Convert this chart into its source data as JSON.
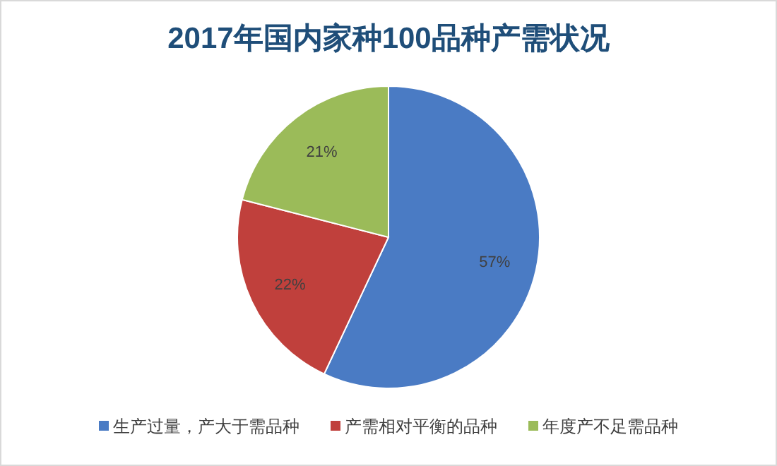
{
  "chart_data": {
    "type": "pie",
    "title": "2017年国内家种100品种产需状况",
    "categories": [
      "生产过量，产大于需品种",
      "产需相对平衡的品种",
      "年度产不足需品种"
    ],
    "values": [
      57,
      22,
      21
    ],
    "colors": [
      "#4a7bc4",
      "#c0403c",
      "#9bbb59"
    ],
    "value_labels": [
      "57%",
      "22%",
      "21%"
    ],
    "legend": "bottom"
  }
}
